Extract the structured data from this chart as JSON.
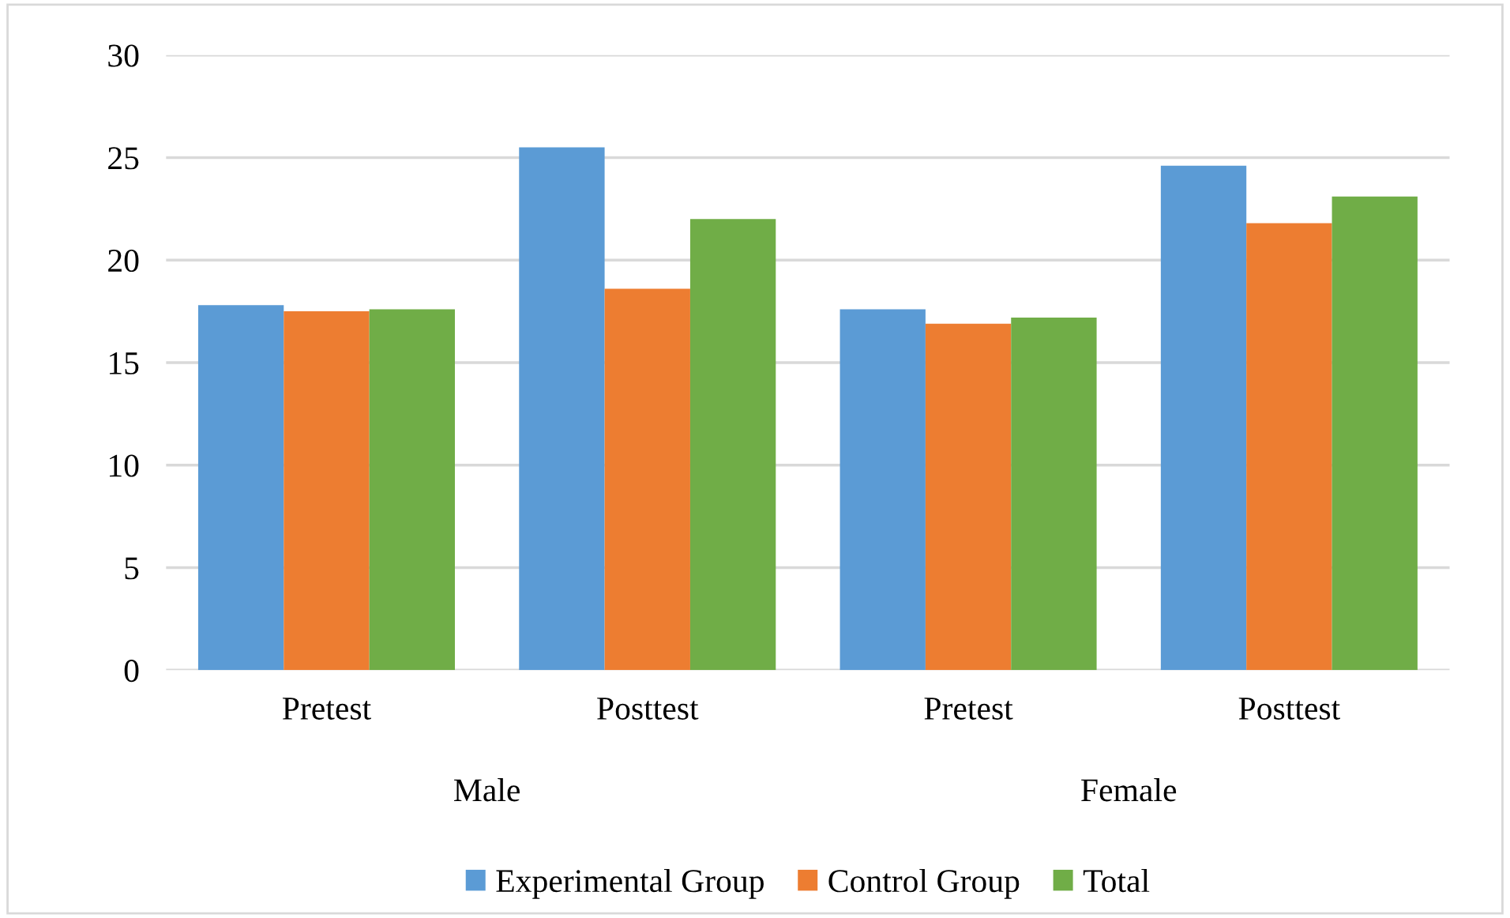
{
  "chart_data": {
    "type": "bar",
    "categories": [
      "Pretest",
      "Posttest",
      "Pretest",
      "Posttest"
    ],
    "series": [
      {
        "name": "Experimental Group",
        "color": "#5b9bd5",
        "values": [
          17.8,
          25.5,
          17.6,
          24.6
        ]
      },
      {
        "name": "Control Group",
        "color": "#ed7d31",
        "values": [
          17.5,
          18.6,
          16.9,
          21.8
        ]
      },
      {
        "name": "Total",
        "color": "#70ad47",
        "values": [
          17.6,
          22,
          17.2,
          23.1
        ]
      }
    ],
    "annotations": [
      "Male",
      "Female"
    ],
    "ylim": [
      0,
      30
    ],
    "yticks": [
      0,
      5,
      10,
      15,
      20,
      25,
      30
    ],
    "grid": "y",
    "legend": "bottom"
  }
}
